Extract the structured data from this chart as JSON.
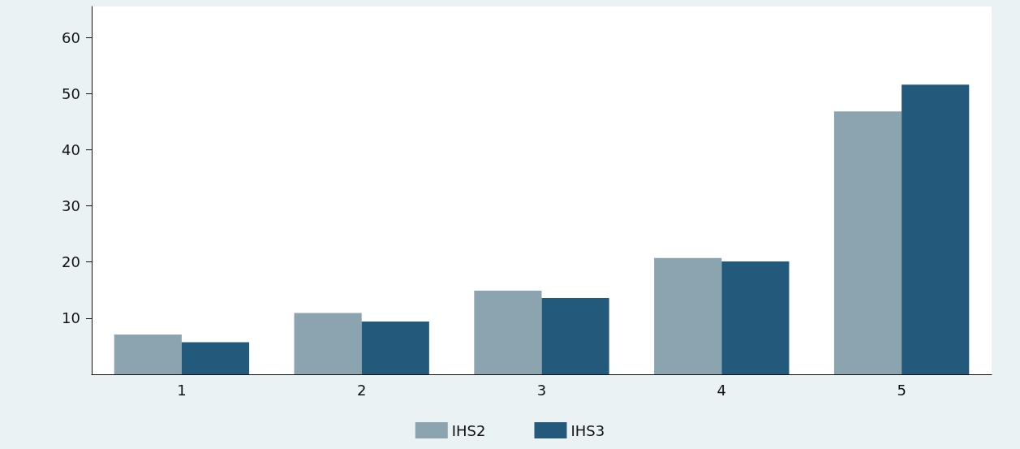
{
  "chart_data": {
    "type": "bar",
    "categories": [
      "1",
      "2",
      "3",
      "4",
      "5"
    ],
    "series": [
      {
        "name": "IHS2",
        "color": "#8ca3b0",
        "values": [
          7.1,
          10.9,
          14.9,
          20.7,
          46.8
        ]
      },
      {
        "name": "IHS3",
        "color": "#235a7c",
        "values": [
          5.7,
          9.4,
          13.6,
          20.1,
          51.6
        ]
      }
    ],
    "ylim": [
      0,
      65.5
    ],
    "yticks": [
      10,
      20,
      30,
      40,
      50,
      60
    ],
    "grid": false,
    "legend": "bottom"
  }
}
